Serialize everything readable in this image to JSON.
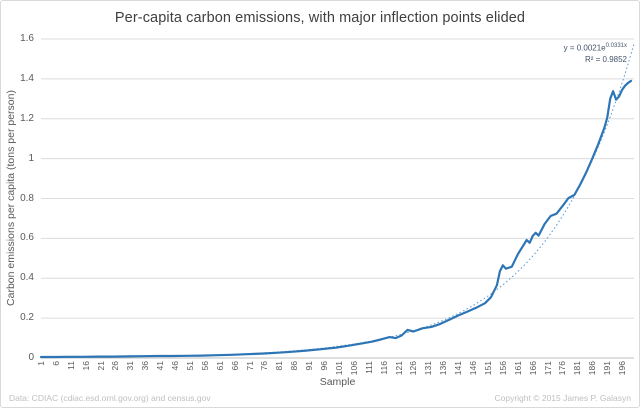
{
  "title": "Per-capita carbon emissions, with major inflection points elided",
  "annotation": {
    "equation_base": "y = 0.0021e",
    "equation_exponent": "0.0331x",
    "r_squared": "R² = 0.9852"
  },
  "footer": {
    "data_source": "Data: CDIAC (cdiac.esd.ornl.gov.org)  and census.gov",
    "copyright": "Copyright © 2015 James P. Galasyn"
  },
  "colors": {
    "series_line": "#2e75b6",
    "trendline": "#5b9bd5",
    "gridline": "#dcdcdc",
    "axis_line": "#bfbfbf",
    "tick_text": "#595959",
    "footer_text": "#bfbfbf"
  },
  "chart_data": {
    "type": "line",
    "title": "Per-capita carbon emissions, with major inflection points elided",
    "xlabel": "Sample",
    "ylabel": "Carbon emissions per capita (tons per person)",
    "xlim": [
      1,
      200
    ],
    "ylim": [
      0,
      1.6
    ],
    "x_ticks": [
      1,
      6,
      11,
      16,
      21,
      26,
      31,
      36,
      41,
      46,
      51,
      56,
      61,
      66,
      71,
      76,
      81,
      86,
      91,
      96,
      101,
      106,
      111,
      116,
      121,
      126,
      131,
      136,
      141,
      146,
      151,
      156,
      161,
      166,
      171,
      176,
      181,
      186,
      191,
      196
    ],
    "y_ticks": [
      0,
      0.2,
      0.4,
      0.6,
      0.8,
      1,
      1.2,
      1.4,
      1.6
    ],
    "y_tick_labels": [
      "0",
      "0.2",
      "0.4",
      "0.6",
      "0.8",
      "1",
      "1.2",
      "1.4",
      "1.6"
    ],
    "grid": "horizontal",
    "legend": "none",
    "series": [
      {
        "name": "Per-capita carbon emissions",
        "style": "solid",
        "points": [
          [
            1,
            0.005
          ],
          [
            5,
            0.005
          ],
          [
            10,
            0.006
          ],
          [
            15,
            0.006
          ],
          [
            20,
            0.007
          ],
          [
            25,
            0.007
          ],
          [
            30,
            0.008
          ],
          [
            35,
            0.009
          ],
          [
            40,
            0.01
          ],
          [
            45,
            0.01
          ],
          [
            50,
            0.011
          ],
          [
            55,
            0.012
          ],
          [
            60,
            0.014
          ],
          [
            65,
            0.016
          ],
          [
            70,
            0.019
          ],
          [
            75,
            0.022
          ],
          [
            80,
            0.026
          ],
          [
            85,
            0.031
          ],
          [
            90,
            0.037
          ],
          [
            95,
            0.044
          ],
          [
            100,
            0.052
          ],
          [
            104,
            0.061
          ],
          [
            108,
            0.071
          ],
          [
            112,
            0.082
          ],
          [
            115,
            0.093
          ],
          [
            118,
            0.105
          ],
          [
            120,
            0.1
          ],
          [
            122,
            0.113
          ],
          [
            124,
            0.141
          ],
          [
            126,
            0.133
          ],
          [
            129,
            0.149
          ],
          [
            132,
            0.156
          ],
          [
            135,
            0.171
          ],
          [
            138,
            0.192
          ],
          [
            141,
            0.213
          ],
          [
            144,
            0.232
          ],
          [
            147,
            0.252
          ],
          [
            150,
            0.275
          ],
          [
            152,
            0.305
          ],
          [
            154,
            0.365
          ],
          [
            155,
            0.435
          ],
          [
            156,
            0.465
          ],
          [
            157,
            0.448
          ],
          [
            159,
            0.458
          ],
          [
            161,
            0.52
          ],
          [
            163,
            0.568
          ],
          [
            164,
            0.592
          ],
          [
            165,
            0.578
          ],
          [
            166,
            0.612
          ],
          [
            167,
            0.628
          ],
          [
            168,
            0.614
          ],
          [
            170,
            0.672
          ],
          [
            172,
            0.712
          ],
          [
            174,
            0.724
          ],
          [
            176,
            0.762
          ],
          [
            178,
            0.802
          ],
          [
            180,
            0.818
          ],
          [
            182,
            0.872
          ],
          [
            184,
            0.932
          ],
          [
            186,
            1.0
          ],
          [
            188,
            1.072
          ],
          [
            190,
            1.152
          ],
          [
            191,
            1.205
          ],
          [
            192,
            1.3
          ],
          [
            193,
            1.338
          ],
          [
            194,
            1.296
          ],
          [
            195,
            1.312
          ],
          [
            196,
            1.345
          ],
          [
            197,
            1.366
          ],
          [
            198,
            1.38
          ],
          [
            199,
            1.39
          ]
        ]
      },
      {
        "name": "Exponential trendline",
        "style": "dotted",
        "fit": {
          "a": 0.0021,
          "b": 0.0331,
          "x_start": 1,
          "x_end": 200
        },
        "equation": "y = 0.0021e^0.0331x",
        "r_squared": 0.9852
      }
    ]
  }
}
